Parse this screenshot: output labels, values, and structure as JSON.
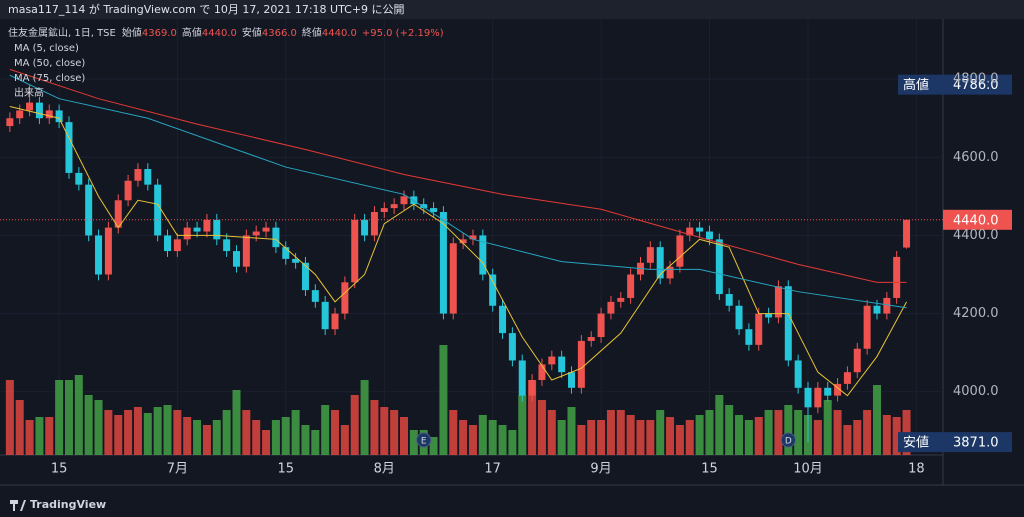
{
  "header": "masa117_114 が TradingView.com で 10月 17, 2021 17:18 UTC+9 に公開",
  "chart_data": {
    "type": "candlestick",
    "symbol": "住友金属鉱山, 1日, TSE",
    "ohlc_legend": [
      {
        "label": "始値",
        "value": 4369,
        "value_label": "4369.0"
      },
      {
        "label": "高値",
        "value": 4440,
        "value_label": "4440.0"
      },
      {
        "label": "安値",
        "value": 4366,
        "value_label": "4366.0"
      },
      {
        "label": "終値",
        "value": 4440,
        "value_label": "4440.0"
      }
    ],
    "change_label": "+95.0 (+2.19%)",
    "open": [
      4680,
      4700,
      4720,
      4740,
      4700,
      4720,
      4690,
      4560,
      4530,
      4400,
      4300,
      4420,
      4490,
      4540,
      4570,
      4530,
      4400,
      4360,
      4390,
      4420,
      4410,
      4440,
      4390,
      4360,
      4320,
      4400,
      4410,
      4420,
      4370,
      4340,
      4330,
      4260,
      4230,
      4160,
      4200,
      4280,
      4440,
      4400,
      4460,
      4470,
      4480,
      4500,
      4480,
      4470,
      4460,
      4200,
      4380,
      4390,
      4400,
      4300,
      4220,
      4150,
      4080,
      3990,
      4030,
      4070,
      4090,
      4050,
      4010,
      4130,
      4140,
      4200,
      4230,
      4240,
      4300,
      4330,
      4370,
      4290,
      4320,
      4400,
      4420,
      4410,
      4390,
      4250,
      4220,
      4160,
      4120,
      4200,
      4190,
      4270,
      4080,
      4010,
      3960,
      4010,
      3990,
      4020,
      4050,
      4110,
      4220,
      4200,
      4240,
      4369
    ],
    "high": [
      4715,
      4735,
      4786,
      4755,
      4735,
      4735,
      4705,
      4575,
      4545,
      4415,
      4435,
      4505,
      4555,
      4585,
      4585,
      4545,
      4415,
      4405,
      4435,
      4435,
      4455,
      4455,
      4405,
      4375,
      4415,
      4425,
      4435,
      4435,
      4385,
      4355,
      4345,
      4275,
      4245,
      4215,
      4295,
      4455,
      4455,
      4475,
      4485,
      4495,
      4515,
      4515,
      4495,
      4485,
      4475,
      4395,
      4405,
      4415,
      4415,
      4315,
      4235,
      4165,
      4095,
      4045,
      4085,
      4105,
      4105,
      4065,
      4145,
      4155,
      4215,
      4245,
      4255,
      4315,
      4345,
      4385,
      4385,
      4335,
      4415,
      4435,
      4435,
      4425,
      4405,
      4265,
      4235,
      4175,
      4215,
      4215,
      4285,
      4285,
      4095,
      4025,
      4025,
      4025,
      4035,
      4065,
      4125,
      4235,
      4235,
      4255,
      4360,
      4440
    ],
    "low": [
      4665,
      4685,
      4705,
      4685,
      4685,
      4675,
      4545,
      4515,
      4385,
      4285,
      4285,
      4405,
      4475,
      4525,
      4515,
      4385,
      4345,
      4345,
      4375,
      4395,
      4395,
      4375,
      4345,
      4305,
      4305,
      4385,
      4395,
      4355,
      4325,
      4315,
      4245,
      4215,
      4145,
      4145,
      4185,
      4265,
      4385,
      4385,
      4445,
      4455,
      4465,
      4465,
      4455,
      4445,
      4185,
      4185,
      4365,
      4375,
      4285,
      4205,
      4135,
      4065,
      3975,
      3975,
      4015,
      4055,
      4035,
      3995,
      3995,
      4115,
      4125,
      4185,
      4215,
      4225,
      4285,
      4315,
      4275,
      4275,
      4305,
      4385,
      4395,
      4375,
      4235,
      4205,
      4145,
      4105,
      4105,
      4175,
      4175,
      4065,
      3995,
      3871,
      3945,
      3975,
      3975,
      4005,
      4035,
      4095,
      4185,
      4185,
      4225,
      4366
    ],
    "close": [
      4700,
      4720,
      4740,
      4700,
      4720,
      4690,
      4560,
      4530,
      4400,
      4300,
      4420,
      4490,
      4540,
      4570,
      4530,
      4400,
      4360,
      4390,
      4420,
      4410,
      4440,
      4390,
      4360,
      4320,
      4400,
      4410,
      4420,
      4370,
      4340,
      4330,
      4260,
      4230,
      4160,
      4200,
      4280,
      4440,
      4400,
      4460,
      4470,
      4480,
      4500,
      4480,
      4470,
      4460,
      4200,
      4380,
      4390,
      4400,
      4300,
      4220,
      4150,
      4080,
      3990,
      4030,
      4070,
      4090,
      4050,
      4010,
      4130,
      4140,
      4200,
      4230,
      4240,
      4300,
      4330,
      4370,
      4290,
      4320,
      4400,
      4420,
      4410,
      4390,
      4250,
      4220,
      4160,
      4120,
      4200,
      4190,
      4270,
      4080,
      4010,
      3960,
      4010,
      3990,
      4020,
      4050,
      4110,
      4220,
      4200,
      4240,
      4345,
      4440
    ],
    "up_color": "#ef5350",
    "down_color": "#26c6da",
    "volume": {
      "name": "出来高",
      "up_color": "#e0463f",
      "down_color": "#43a047",
      "values": [
        75,
        55,
        35,
        38,
        38,
        75,
        75,
        80,
        60,
        55,
        45,
        40,
        45,
        48,
        42,
        48,
        50,
        45,
        38,
        35,
        30,
        35,
        45,
        65,
        45,
        35,
        25,
        35,
        38,
        45,
        30,
        25,
        50,
        45,
        30,
        60,
        75,
        55,
        48,
        45,
        38,
        25,
        25,
        18,
        110,
        45,
        35,
        30,
        40,
        35,
        30,
        25,
        60,
        75,
        55,
        45,
        35,
        48,
        30,
        35,
        35,
        45,
        45,
        40,
        35,
        35,
        45,
        38,
        30,
        35,
        40,
        45,
        60,
        50,
        40,
        35,
        38,
        45,
        45,
        50,
        45,
        40,
        35,
        55,
        45,
        30,
        35,
        45,
        70,
        40,
        38,
        45
      ]
    },
    "volume_lim": [
      0,
      180
    ],
    "series": [
      {
        "name": "MA (5, close)",
        "color": "#e8c334",
        "x": [
          0,
          5,
          9,
          11,
          13,
          15,
          17,
          21,
          27,
          31,
          33,
          36,
          38,
          41,
          44,
          48,
          52,
          55,
          58,
          62,
          66,
          70,
          73,
          76,
          79,
          82,
          85,
          88,
          91
        ],
        "values": [
          4730,
          4700,
          4500,
          4420,
          4490,
          4480,
          4400,
          4400,
          4390,
          4300,
          4230,
          4300,
          4430,
          4480,
          4430,
          4330,
          4140,
          4030,
          4060,
          4150,
          4300,
          4390,
          4370,
          4200,
          4200,
          4050,
          3990,
          4090,
          4230
        ]
      },
      {
        "name": "MA (50, close)",
        "color": "#e53935",
        "x": [
          0,
          9,
          19,
          30,
          40,
          50,
          60,
          70,
          80,
          88,
          91
        ],
        "values": [
          4825,
          4750,
          4685,
          4620,
          4556,
          4505,
          4467,
          4395,
          4326,
          4280,
          4280
        ]
      },
      {
        "name": "MA (75, close)",
        "color": "#26a6c0",
        "x": [
          0,
          5,
          14,
          28,
          40,
          47,
          56,
          65,
          70,
          80,
          91
        ],
        "values": [
          4810,
          4750,
          4700,
          4575,
          4505,
          4390,
          4333,
          4313,
          4313,
          4256,
          4215
        ]
      }
    ],
    "xlim": [
      -1,
      94.7
    ],
    "xticks": [
      {
        "value": 5,
        "label": "15"
      },
      {
        "value": 17,
        "label": "7月"
      },
      {
        "value": 28,
        "label": "15"
      },
      {
        "value": 38,
        "label": "8月"
      },
      {
        "value": 49,
        "label": "17"
      },
      {
        "value": 60,
        "label": "9月"
      },
      {
        "value": 71,
        "label": "15"
      },
      {
        "value": 81,
        "label": "10月"
      },
      {
        "value": 92,
        "label": "18"
      }
    ],
    "ylim": [
      3838,
      4954
    ],
    "yticks": [
      {
        "value": 4800,
        "label": "4800.0"
      },
      {
        "value": 4600,
        "label": "4600.0"
      },
      {
        "value": 4400,
        "label": "4400.0"
      },
      {
        "value": 4200,
        "label": "4200.0"
      },
      {
        "value": 4000,
        "label": "4000.0"
      }
    ],
    "grid": true,
    "price_markers": [
      {
        "name": "高値",
        "value": 4786,
        "value_label": "4786.0",
        "color": "#1c3765"
      },
      {
        "name": "安値",
        "value": 3871,
        "value_label": "3871.0",
        "color": "#1c3765"
      },
      {
        "value": 4440,
        "value_label": "4440.0",
        "color": "#ef5350"
      }
    ],
    "events": [
      {
        "label": "E",
        "x": 42
      },
      {
        "label": "D",
        "x": 79
      }
    ]
  },
  "footer": "TradingView"
}
